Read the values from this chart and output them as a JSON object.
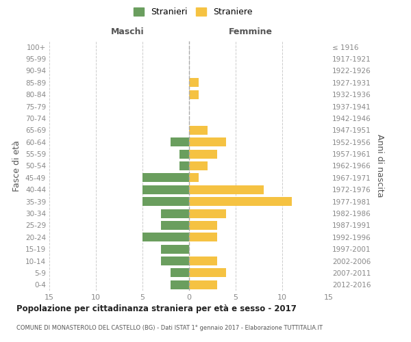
{
  "age_groups": [
    "0-4",
    "5-9",
    "10-14",
    "15-19",
    "20-24",
    "25-29",
    "30-34",
    "35-39",
    "40-44",
    "45-49",
    "50-54",
    "55-59",
    "60-64",
    "65-69",
    "70-74",
    "75-79",
    "80-84",
    "85-89",
    "90-94",
    "95-99",
    "100+"
  ],
  "birth_years": [
    "2012-2016",
    "2007-2011",
    "2002-2006",
    "1997-2001",
    "1992-1996",
    "1987-1991",
    "1982-1986",
    "1977-1981",
    "1972-1976",
    "1967-1971",
    "1962-1966",
    "1957-1961",
    "1952-1956",
    "1947-1951",
    "1942-1946",
    "1937-1941",
    "1932-1936",
    "1927-1931",
    "1922-1926",
    "1917-1921",
    "≤ 1916"
  ],
  "males": [
    2,
    2,
    3,
    3,
    5,
    3,
    3,
    5,
    5,
    5,
    1,
    1,
    2,
    0,
    0,
    0,
    0,
    0,
    0,
    0,
    0
  ],
  "females": [
    3,
    4,
    3,
    0,
    3,
    3,
    4,
    11,
    8,
    1,
    2,
    3,
    4,
    2,
    0,
    0,
    1,
    1,
    0,
    0,
    0
  ],
  "male_color": "#6a9e5e",
  "female_color": "#f5c242",
  "background_color": "#ffffff",
  "grid_color": "#cccccc",
  "title": "Popolazione per cittadinanza straniera per età e sesso - 2017",
  "subtitle": "COMUNE DI MONASTEROLO DEL CASTELLO (BG) - Dati ISTAT 1° gennaio 2017 - Elaborazione TUTTITALIA.IT",
  "ylabel_left": "Fasce di età",
  "ylabel_right": "Anni di nascita",
  "xlabel_males": "Maschi",
  "xlabel_females": "Femmine",
  "legend_males": "Stranieri",
  "legend_females": "Straniere",
  "xlim": 15,
  "bar_height": 0.75
}
